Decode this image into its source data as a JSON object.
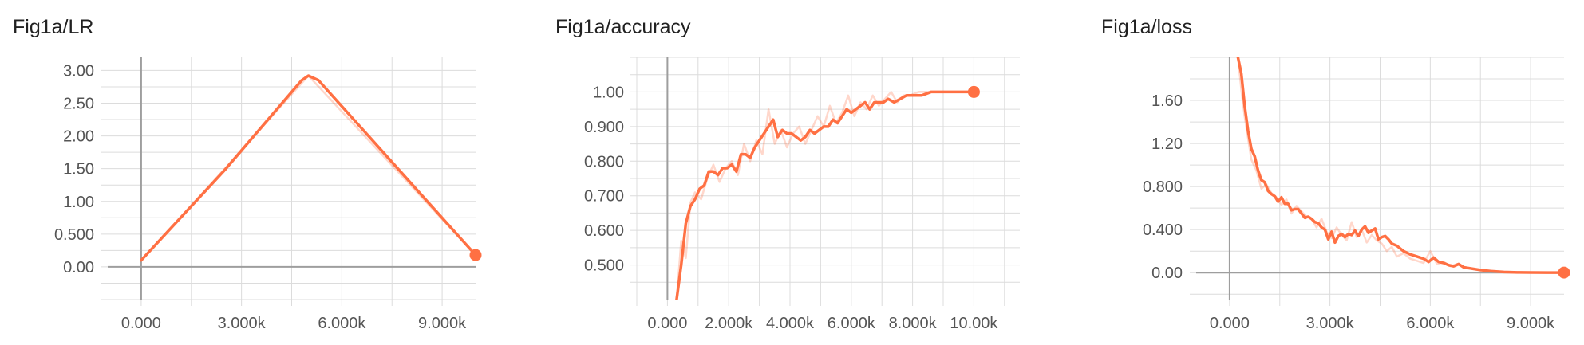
{
  "colors": {
    "series": "#ff7043"
  },
  "chart_data": [
    {
      "type": "line",
      "title": "Fig1a/LR",
      "x_range": [
        -1000,
        10000
      ],
      "y_range": [
        -0.5,
        3.2
      ],
      "x_ticks": [
        0,
        3000,
        6000,
        9000
      ],
      "x_tick_labels": [
        "0.000",
        "3.000k",
        "6.000k",
        "9.000k"
      ],
      "y_ticks": [
        0,
        0.5,
        1.0,
        1.5,
        2.0,
        2.5,
        3.0
      ],
      "y_tick_labels": [
        "0.00",
        "0.500",
        "1.00",
        "1.50",
        "2.00",
        "2.50",
        "3.00"
      ],
      "grid": true,
      "series": [
        {
          "raw": {
            "x": [
              0,
              2500,
              5000,
              7500,
              10000
            ],
            "y": [
              0.1,
              1.5,
              2.92,
              1.55,
              0.18
            ]
          },
          "smoothed": {
            "x": [
              0,
              2500,
              4800,
              5000,
              5300,
              7500,
              10000
            ],
            "y": [
              0.1,
              1.48,
              2.85,
              2.92,
              2.85,
              1.6,
              0.18
            ]
          }
        }
      ]
    },
    {
      "type": "line",
      "title": "Fig1a/accuracy",
      "x_range": [
        -1000,
        11500
      ],
      "y_range": [
        0.4,
        1.1
      ],
      "x_ticks": [
        0,
        2000,
        4000,
        6000,
        8000,
        10000
      ],
      "x_tick_labels": [
        "0.000",
        "2.000k",
        "4.000k",
        "6.000k",
        "8.000k",
        "10.00k"
      ],
      "y_ticks": [
        0.5,
        0.6,
        0.7,
        0.8,
        0.9,
        1.0
      ],
      "y_tick_labels": [
        "0.500",
        "0.600",
        "0.700",
        "0.800",
        "0.900",
        "1.00"
      ],
      "grid": true,
      "series": [
        {
          "raw": {
            "x": [
              300,
              450,
              600,
              750,
              900,
              1100,
              1300,
              1500,
              1700,
              1900,
              2100,
              2300,
              2500,
              2700,
              2900,
              3100,
              3300,
              3500,
              3700,
              3900,
              4100,
              4300,
              4500,
              4700,
              4900,
              5100,
              5300,
              5500,
              5700,
              5900,
              6100,
              6300,
              6500,
              6700,
              6900,
              7100,
              7300,
              7500,
              7700,
              7900,
              8200,
              8600,
              9000,
              9500,
              10000
            ],
            "y": [
              0.4,
              0.57,
              0.52,
              0.68,
              0.71,
              0.69,
              0.75,
              0.79,
              0.74,
              0.78,
              0.8,
              0.76,
              0.85,
              0.8,
              0.86,
              0.82,
              0.95,
              0.85,
              0.89,
              0.84,
              0.88,
              0.9,
              0.85,
              0.89,
              0.93,
              0.9,
              0.96,
              0.91,
              0.94,
              0.99,
              0.93,
              0.97,
              0.95,
              0.99,
              0.96,
              0.98,
              1.0,
              0.97,
              0.99,
              0.99,
              1.0,
              1.0,
              1.0,
              1.0,
              1.0
            ]
          },
          "smoothed": {
            "x": [
              300,
              450,
              600,
              750,
              900,
              1050,
              1200,
              1350,
              1500,
              1650,
              1800,
              1950,
              2100,
              2250,
              2400,
              2550,
              2700,
              2850,
              3000,
              3150,
              3300,
              3450,
              3600,
              3750,
              3900,
              4050,
              4200,
              4350,
              4500,
              4650,
              4800,
              4950,
              5100,
              5250,
              5400,
              5550,
              5700,
              5850,
              6000,
              6150,
              6300,
              6450,
              6600,
              6750,
              6900,
              7050,
              7200,
              7400,
              7600,
              7800,
              8000,
              8300,
              8600,
              9000,
              9500,
              10000
            ],
            "y": [
              0.4,
              0.5,
              0.62,
              0.67,
              0.69,
              0.72,
              0.73,
              0.77,
              0.77,
              0.76,
              0.78,
              0.78,
              0.79,
              0.77,
              0.82,
              0.82,
              0.81,
              0.84,
              0.86,
              0.88,
              0.9,
              0.92,
              0.87,
              0.89,
              0.88,
              0.88,
              0.87,
              0.86,
              0.87,
              0.89,
              0.88,
              0.89,
              0.9,
              0.9,
              0.92,
              0.91,
              0.93,
              0.95,
              0.94,
              0.95,
              0.96,
              0.97,
              0.95,
              0.97,
              0.97,
              0.97,
              0.98,
              0.97,
              0.98,
              0.99,
              0.99,
              0.99,
              1.0,
              1.0,
              1.0,
              1.0
            ]
          }
        }
      ]
    },
    {
      "type": "line",
      "title": "Fig1a/loss",
      "x_range": [
        -1000,
        10000
      ],
      "y_range": [
        -0.25,
        2.0
      ],
      "x_ticks": [
        0,
        3000,
        6000,
        9000
      ],
      "x_tick_labels": [
        "0.000",
        "3.000k",
        "6.000k",
        "9.000k"
      ],
      "y_ticks": [
        0,
        0.4,
        0.8,
        1.2,
        1.6
      ],
      "y_tick_labels": [
        "0.00",
        "0.400",
        "0.800",
        "1.20",
        "1.60"
      ],
      "grid": true,
      "series": [
        {
          "raw": {
            "x": [
              250,
              350,
              450,
              550,
              650,
              800,
              950,
              1100,
              1250,
              1400,
              1550,
              1700,
              1850,
              2000,
              2150,
              2300,
              2450,
              2600,
              2750,
              2900,
              3050,
              3200,
              3350,
              3500,
              3650,
              3800,
              3950,
              4100,
              4250,
              4400,
              4550,
              4700,
              4850,
              5000,
              5200,
              5400,
              5600,
              5800,
              6000,
              6200,
              6400,
              6600,
              6800,
              7000,
              7300,
              7600,
              8000,
              8500,
              9000,
              9500,
              10000
            ],
            "y": [
              2.0,
              1.7,
              1.45,
              1.25,
              1.05,
              0.95,
              0.78,
              0.82,
              0.74,
              0.7,
              0.63,
              0.68,
              0.55,
              0.62,
              0.57,
              0.52,
              0.5,
              0.42,
              0.5,
              0.38,
              0.32,
              0.42,
              0.35,
              0.3,
              0.47,
              0.33,
              0.4,
              0.28,
              0.35,
              0.3,
              0.27,
              0.2,
              0.24,
              0.15,
              0.18,
              0.13,
              0.11,
              0.09,
              0.2,
              0.08,
              0.1,
              0.06,
              0.08,
              0.05,
              0.03,
              0.02,
              0.01,
              0.005,
              0.003,
              0.002,
              0.001
            ]
          },
          "smoothed": {
            "x": [
              250,
              350,
              450,
              550,
              650,
              750,
              850,
              950,
              1050,
              1150,
              1250,
              1350,
              1450,
              1550,
              1650,
              1750,
              1850,
              1950,
              2050,
              2150,
              2250,
              2350,
              2450,
              2550,
              2650,
              2750,
              2850,
              2950,
              3050,
              3150,
              3250,
              3350,
              3450,
              3550,
              3650,
              3750,
              3850,
              3950,
              4050,
              4150,
              4250,
              4350,
              4450,
              4550,
              4650,
              4750,
              4850,
              5000,
              5200,
              5400,
              5600,
              5800,
              5950,
              6100,
              6250,
              6400,
              6550,
              6700,
              6850,
              7000,
              7200,
              7500,
              7800,
              8200,
              8600,
              9000,
              9500,
              10000
            ],
            "y": [
              2.0,
              1.85,
              1.55,
              1.32,
              1.15,
              1.08,
              0.95,
              0.86,
              0.84,
              0.76,
              0.73,
              0.71,
              0.66,
              0.7,
              0.64,
              0.64,
              0.58,
              0.59,
              0.59,
              0.55,
              0.51,
              0.52,
              0.5,
              0.47,
              0.46,
              0.42,
              0.4,
              0.31,
              0.38,
              0.28,
              0.34,
              0.36,
              0.33,
              0.36,
              0.35,
              0.39,
              0.34,
              0.4,
              0.43,
              0.37,
              0.39,
              0.41,
              0.31,
              0.33,
              0.34,
              0.31,
              0.27,
              0.25,
              0.2,
              0.17,
              0.15,
              0.13,
              0.1,
              0.14,
              0.1,
              0.09,
              0.07,
              0.06,
              0.08,
              0.05,
              0.04,
              0.025,
              0.015,
              0.006,
              0.003,
              0.002,
              0.001,
              0.001
            ]
          }
        }
      ]
    }
  ]
}
